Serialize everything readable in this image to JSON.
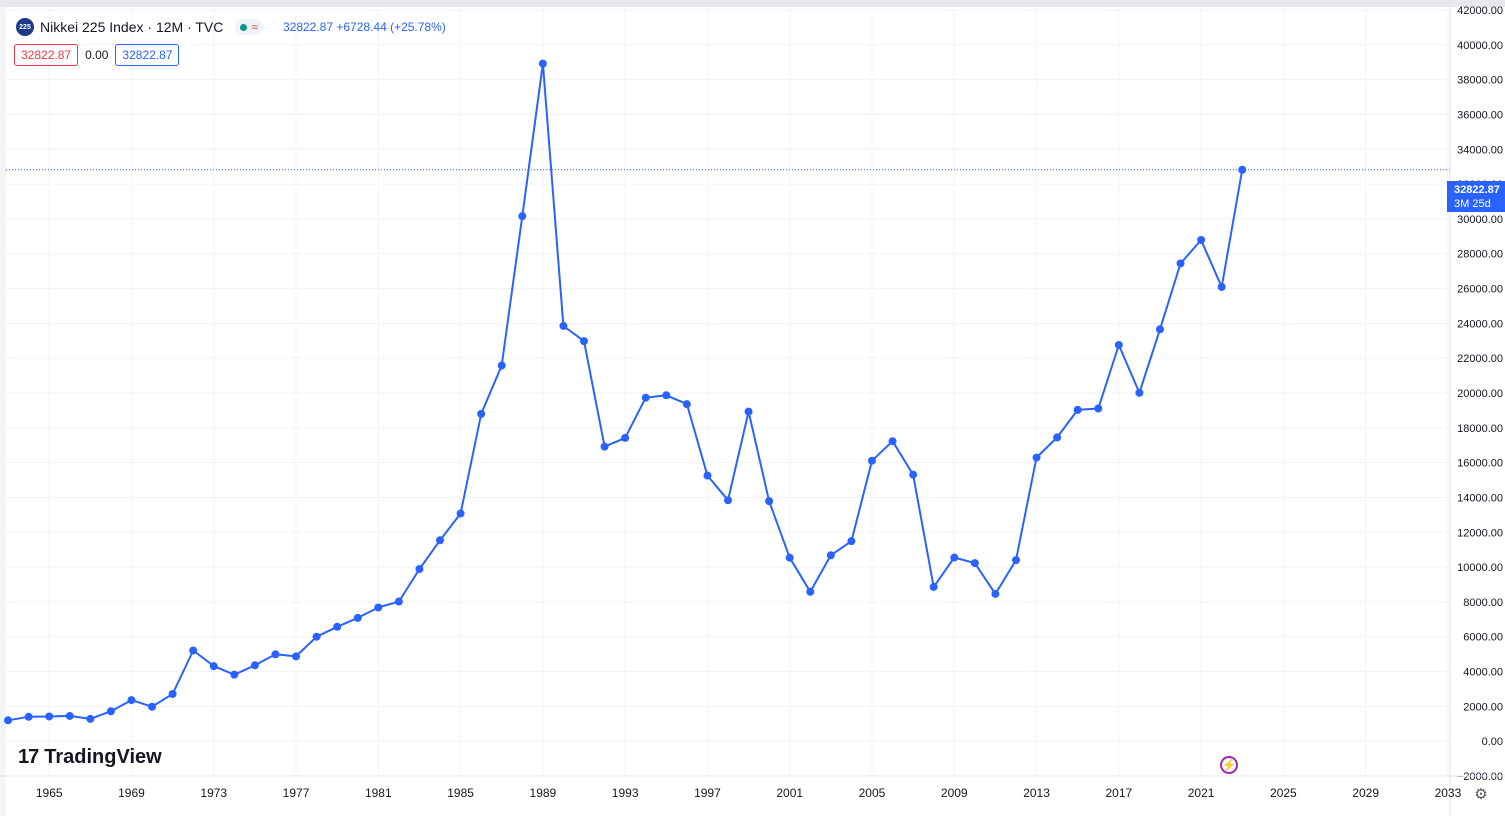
{
  "header": {
    "symbol_icon_text": "225",
    "title": "Nikkei 225 Index · 12M · TVC",
    "status_wave": "≈",
    "last_values": "32822.87  +6728.44 (+25.78%)",
    "box_left": "32822.87",
    "zero": "0.00",
    "box_right": "32822.87"
  },
  "price_tag": {
    "value": "32822.87",
    "countdown": "3M 25d"
  },
  "branding": {
    "logo_mark": "17",
    "name": "TradingView"
  },
  "icons": {
    "bolt": "lightning-icon",
    "gear": "settings-icon"
  },
  "colors": {
    "line": "#2962ff",
    "grid": "#f0f3fa",
    "axis_text": "#131722",
    "tag": "#2962ff",
    "symbol": "#1e3a8a"
  },
  "chart_data": {
    "type": "line",
    "title": "Nikkei 225 Index · 12M · TVC",
    "xlabel": "",
    "ylabel": "",
    "xlim": [
      1962.9,
      2033.1
    ],
    "ylim": [
      -2000,
      42000
    ],
    "y_ticks": [
      -2000,
      0,
      2000,
      4000,
      6000,
      8000,
      10000,
      12000,
      14000,
      16000,
      18000,
      20000,
      22000,
      24000,
      26000,
      28000,
      30000,
      32000,
      34000,
      36000,
      38000,
      40000,
      42000
    ],
    "y_tick_labels": [
      "−2000.00",
      "0.00",
      "2000.00",
      "4000.00",
      "6000.00",
      "8000.00",
      "10000.00",
      "12000.00",
      "14000.00",
      "16000.00",
      "18000.00",
      "20000.00",
      "22000.00",
      "24000.00",
      "26000.00",
      "28000.00",
      "30000.00",
      "32000.00",
      "34000.00",
      "36000.00",
      "38000.00",
      "40000.00",
      "42000.00"
    ],
    "x_ticks": [
      1965,
      1969,
      1973,
      1977,
      1981,
      1985,
      1989,
      1993,
      1997,
      2001,
      2005,
      2009,
      2013,
      2017,
      2021,
      2025,
      2029,
      2033
    ],
    "x_tick_labels": [
      "1965",
      "1969",
      "1973",
      "1977",
      "1981",
      "1985",
      "1989",
      "1993",
      "1997",
      "2001",
      "2005",
      "2009",
      "2013",
      "2017",
      "2021",
      "2025",
      "2029",
      "2033"
    ],
    "last_price": 32822.87,
    "series": [
      {
        "x": [
          1963,
          1964,
          1965,
          1966,
          1967,
          1968,
          1969,
          1970,
          1971,
          1972,
          1973,
          1974,
          1975,
          1976,
          1977,
          1978,
          1979,
          1980,
          1981,
          1982,
          1983,
          1984,
          1985,
          1986,
          1987,
          1988,
          1989,
          1990,
          1991,
          1992,
          1993,
          1994,
          1995,
          1996,
          1997,
          1998,
          1999,
          2000,
          2001,
          2002,
          2003,
          2004,
          2005,
          2006,
          2007,
          2008,
          2009,
          2010,
          2011,
          2012,
          2013,
          2014,
          2015,
          2016,
          2017,
          2018,
          2019,
          2020,
          2021,
          2022,
          2023
        ],
        "values": [
          1200,
          1400,
          1420,
          1450,
          1280,
          1720,
          2360,
          1980,
          2710,
          5210,
          4310,
          3820,
          4360,
          4990,
          4870,
          6000,
          6570,
          7080,
          7680,
          8020,
          9890,
          11540,
          13080,
          18800,
          21580,
          30160,
          38920,
          23850,
          22980,
          16920,
          17420,
          19730,
          19870,
          19360,
          15260,
          13840,
          18930,
          13790,
          10540,
          8580,
          10680,
          11490,
          16110,
          17230,
          15310,
          8860,
          10550,
          10230,
          8460,
          10400,
          16290,
          17450,
          19030,
          19110,
          22760,
          20010,
          23660,
          27440,
          28790,
          26090,
          32822.87
        ]
      }
    ]
  }
}
